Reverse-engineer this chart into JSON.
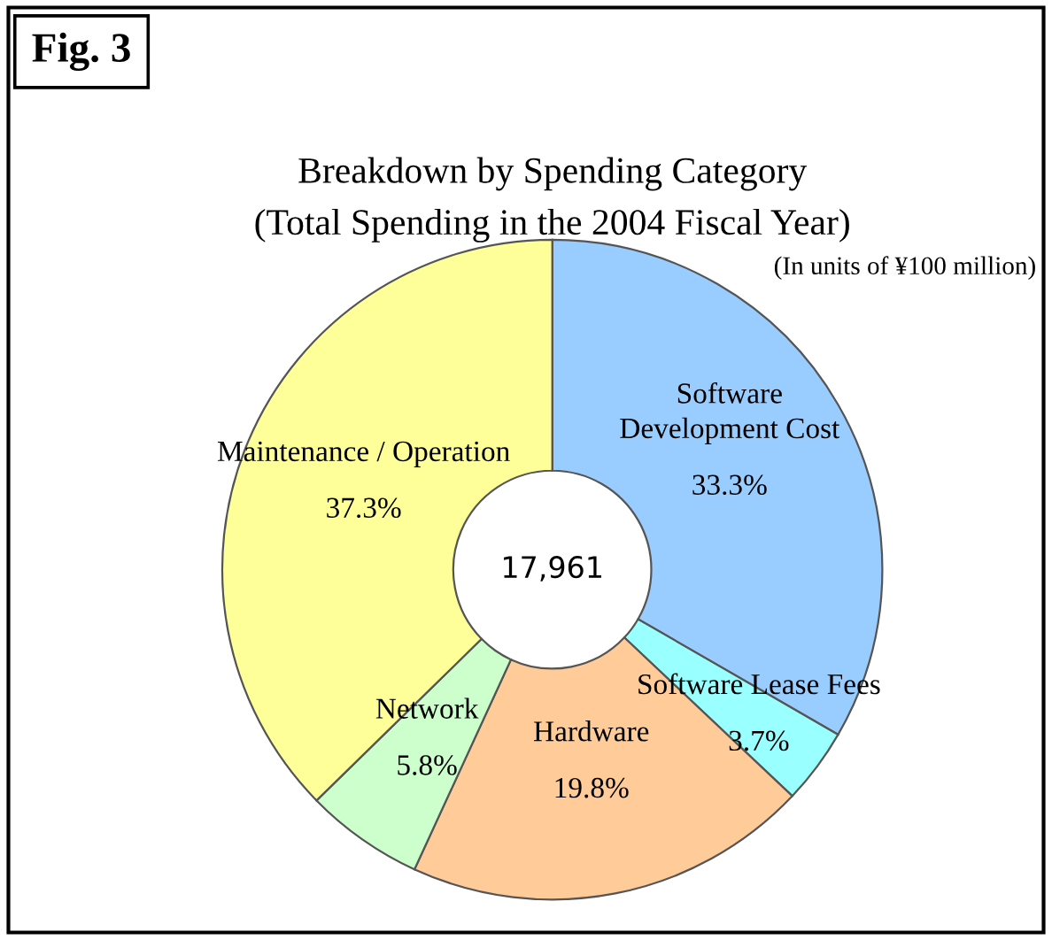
{
  "chart_data": {
    "type": "donut",
    "title": "Breakdown by Spending Category",
    "subtitle": "(Total Spending in the 2004 Fiscal Year)",
    "annotations": [
      "Fig. 3",
      "(In units of ¥100 million)",
      "17,961"
    ],
    "categories": [
      "Software\nDevelopment Cost",
      "Software Lease Fees",
      "Hardware",
      "Network",
      "Maintenance / Operation"
    ],
    "values": [
      33.3,
      3.7,
      19.8,
      5.8,
      37.3
    ],
    "value_labels": [
      "33.3%",
      "3.7%",
      "19.8%",
      "5.8%",
      "37.3%"
    ],
    "colors": [
      "#99ccff",
      "#99ffff",
      "#ffcc99",
      "#ccffcc",
      "#ffff99"
    ],
    "legend": false
  }
}
